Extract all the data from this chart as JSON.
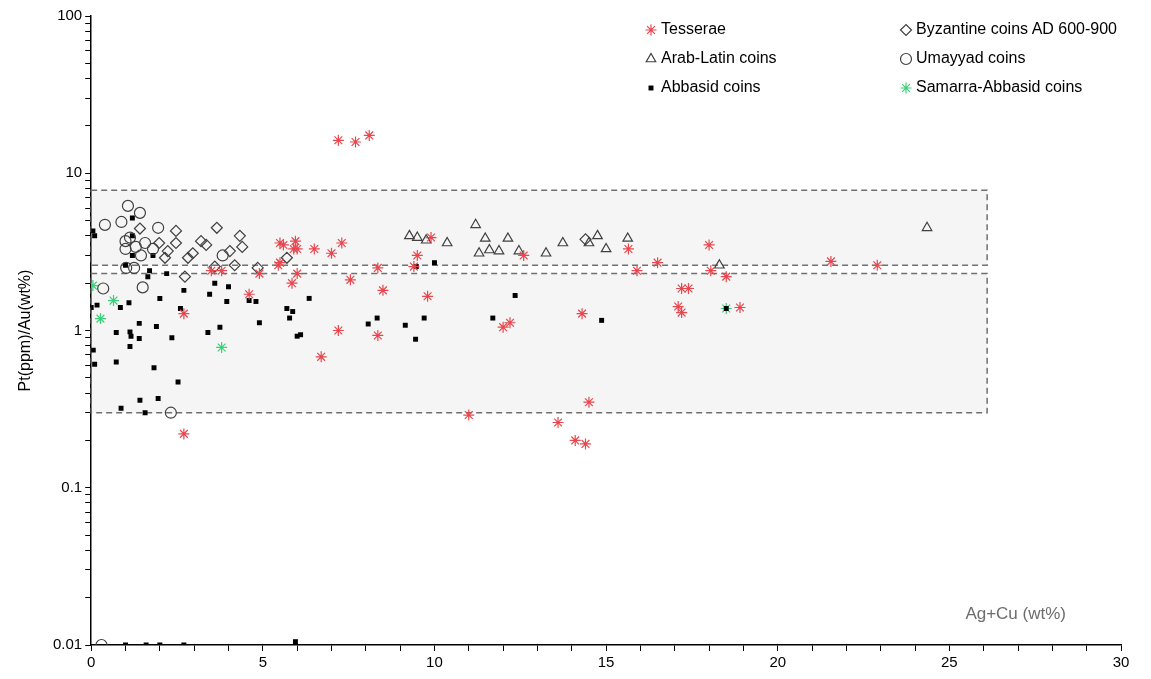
{
  "chart_data": {
    "type": "scatter",
    "xlabel": "Ag+Cu (wt%)",
    "ylabel": "Pt(ppm)/Au(wt%)",
    "log": "y",
    "grid": false,
    "legend": "top right",
    "xlim": [
      0,
      30
    ],
    "xticks": [
      0,
      {
        "value": 1,
        "label": null
      },
      {
        "value": 2,
        "label": null
      },
      {
        "value": 3,
        "label": null
      },
      {
        "value": 4,
        "label": null
      },
      5,
      {
        "value": 6,
        "label": null
      },
      {
        "value": 7,
        "label": null
      },
      {
        "value": 8,
        "label": null
      },
      {
        "value": 9,
        "label": null
      },
      10,
      {
        "value": 11,
        "label": null
      },
      {
        "value": 12,
        "label": null
      },
      {
        "value": 13,
        "label": null
      },
      {
        "value": 14,
        "label": null
      },
      15,
      {
        "value": 16,
        "label": null
      },
      {
        "value": 17,
        "label": null
      },
      {
        "value": 18,
        "label": null
      },
      {
        "value": 19,
        "label": null
      },
      20,
      {
        "value": 21,
        "label": null
      },
      {
        "value": 22,
        "label": null
      },
      {
        "value": 23,
        "label": null
      },
      {
        "value": 24,
        "label": null
      },
      25,
      {
        "value": 26,
        "label": null
      },
      {
        "value": 27,
        "label": null
      },
      {
        "value": 28,
        "label": null
      },
      {
        "value": 29,
        "label": null
      },
      30
    ],
    "ylim": [
      0.01,
      100
    ],
    "yticks": [
      0.01,
      {
        "value": 0.02,
        "label": null
      },
      {
        "value": 0.03,
        "label": null
      },
      {
        "value": 0.04,
        "label": null
      },
      {
        "value": 0.05,
        "label": null
      },
      {
        "value": 0.06,
        "label": null
      },
      {
        "value": 0.07,
        "label": null
      },
      {
        "value": 0.08,
        "label": null
      },
      {
        "value": 0.09,
        "label": null
      },
      0.1,
      {
        "value": 0.2,
        "label": null
      },
      {
        "value": 0.3,
        "label": null
      },
      {
        "value": 0.4,
        "label": null
      },
      {
        "value": 0.5,
        "label": null
      },
      {
        "value": 0.6,
        "label": null
      },
      {
        "value": 0.7,
        "label": null
      },
      {
        "value": 0.8,
        "label": null
      },
      {
        "value": 0.9,
        "label": null
      },
      1,
      {
        "value": 2,
        "label": null
      },
      {
        "value": 3,
        "label": null
      },
      {
        "value": 4,
        "label": null
      },
      {
        "value": 5,
        "label": null
      },
      {
        "value": 6,
        "label": null
      },
      {
        "value": 7,
        "label": null
      },
      {
        "value": 8,
        "label": null
      },
      {
        "value": 9,
        "label": null
      },
      10,
      {
        "value": 20,
        "label": null
      },
      {
        "value": 30,
        "label": null
      },
      {
        "value": 40,
        "label": null
      },
      {
        "value": 50,
        "label": null
      },
      {
        "value": 60,
        "label": null
      },
      {
        "value": 70,
        "label": null
      },
      {
        "value": 80,
        "label": null
      },
      {
        "value": 90,
        "label": null
      },
      100
    ],
    "bands": [
      {
        "axis": "y",
        "from": 2.6,
        "to": 7.8,
        "color": "#707070"
      },
      {
        "axis": "y",
        "from": 0.3,
        "to": 2.3,
        "color": "#707070"
      }
    ],
    "series": [
      {
        "name": "Tesserae",
        "color": "#e8474f",
        "marker": "cross",
        "x": [
          3.5,
          3.8,
          4.9,
          4.6,
          2.7,
          2.7,
          5.5,
          5.5,
          7.2,
          7.7,
          8.1,
          5.6,
          5.95,
          5.9,
          6.0,
          6.5,
          7.0,
          7.3,
          5.45,
          6.0,
          5.85,
          7.55,
          8.35,
          8.5,
          7.2,
          6.7,
          8.35,
          9.9,
          9.5,
          9.4,
          9.8,
          12.6,
          12.0,
          12.2,
          14.3,
          11.0,
          14.5,
          13.6,
          14.1,
          14.4,
          15.65,
          15.9,
          16.5,
          18.0,
          18.05,
          18.5,
          17.2,
          17.4,
          17.1,
          17.2,
          18.9,
          21.55,
          22.9
        ],
        "values": [
          2.4,
          2.4,
          2.3,
          1.7,
          1.28,
          0.22,
          3.6,
          2.7,
          16.2,
          15.8,
          17.4,
          3.5,
          3.7,
          3.3,
          3.3,
          3.3,
          3.1,
          3.6,
          2.6,
          2.3,
          2.0,
          2.1,
          2.5,
          1.8,
          1.0,
          0.68,
          0.93,
          3.9,
          3.0,
          2.55,
          1.65,
          3.0,
          1.05,
          1.12,
          1.28,
          0.29,
          0.35,
          0.26,
          0.2,
          0.19,
          3.3,
          2.4,
          2.7,
          3.5,
          2.4,
          2.2,
          1.85,
          1.85,
          1.42,
          1.3,
          1.4,
          2.75,
          2.6
        ]
      },
      {
        "name": "Byzantine coins AD 600-900",
        "color": "#404040",
        "marker": "diamond",
        "x": [
          1.42,
          2.47,
          1.98,
          2.47,
          3.2,
          3.35,
          3.66,
          4.33,
          4.4,
          4.04,
          2.23,
          2.96,
          2.82,
          2.15,
          4.18,
          2.73,
          4.85,
          3.6,
          5.7,
          14.4
        ],
        "values": [
          4.45,
          4.3,
          3.6,
          3.6,
          3.7,
          3.5,
          4.5,
          4.0,
          3.4,
          3.2,
          3.2,
          3.1,
          2.9,
          2.9,
          2.6,
          2.2,
          2.5,
          2.55,
          2.9,
          3.8
        ]
      },
      {
        "name": "Arab-Latin coins",
        "color": "#404040",
        "marker": "triangle",
        "x": [
          9.27,
          9.5,
          9.76,
          10.37,
          11.2,
          11.48,
          11.3,
          11.6,
          11.88,
          12.14,
          12.46,
          13.25,
          13.74,
          14.5,
          14.75,
          15.0,
          15.63,
          18.3,
          24.35
        ],
        "values": [
          4.0,
          3.9,
          3.75,
          3.6,
          4.7,
          3.85,
          3.1,
          3.25,
          3.2,
          3.85,
          3.2,
          3.1,
          3.6,
          3.6,
          4.0,
          3.3,
          3.85,
          2.6,
          4.5
        ]
      },
      {
        "name": "Umayyad coins",
        "color": "#404040",
        "marker": "circle",
        "x": [
          0.4,
          1.07,
          1.42,
          0.88,
          1.95,
          1.0,
          1.13,
          1.0,
          1.3,
          1.57,
          1.45,
          1.8,
          1.02,
          1.25,
          3.83,
          0.35,
          1.5,
          2.32,
          0.3
        ],
        "values": [
          4.7,
          6.2,
          5.6,
          4.9,
          4.5,
          3.7,
          3.9,
          3.3,
          3.4,
          3.6,
          3.0,
          3.3,
          2.5,
          2.5,
          3.0,
          1.85,
          1.88,
          0.3,
          0.01
        ]
      },
      {
        "name": "Abbasid coins",
        "color": "#000000",
        "marker": "square",
        "x": [
          0.05,
          0.1,
          1.2,
          1.2,
          1.2,
          1.8,
          1.0,
          1.7,
          2.2,
          1.65,
          2.7,
          2.0,
          3.45,
          3.6,
          4.0,
          3.95,
          4.6,
          4.8,
          2.6,
          0.0,
          0.17,
          0.85,
          1.1,
          4.9,
          1.4,
          1.9,
          0.73,
          1.13,
          1.16,
          1.4,
          1.13,
          2.35,
          3.4,
          3.75,
          0.06,
          0.1,
          0.73,
          1.83,
          2.53,
          1.42,
          1.95,
          0.87,
          1.57,
          5.7,
          5.87,
          5.78,
          6.35,
          6.1,
          6.0,
          8.07,
          8.33,
          9.15,
          9.7,
          9.45,
          9.47,
          10.0,
          12.35,
          11.7,
          14.87,
          18.5,
          1.0,
          1.6,
          2.0,
          2.7,
          5.95
        ],
        "values": [
          4.3,
          4.0,
          5.2,
          4.0,
          3.0,
          3.0,
          2.6,
          2.4,
          2.3,
          2.2,
          1.8,
          1.6,
          1.7,
          2.0,
          1.9,
          1.53,
          1.55,
          1.53,
          1.38,
          1.4,
          1.45,
          1.4,
          1.5,
          1.12,
          1.11,
          1.06,
          0.97,
          0.98,
          0.92,
          0.89,
          0.79,
          0.9,
          0.97,
          1.05,
          0.75,
          0.61,
          0.63,
          0.58,
          0.47,
          0.36,
          0.37,
          0.32,
          0.3,
          1.38,
          1.32,
          1.2,
          1.6,
          0.94,
          0.92,
          1.1,
          1.2,
          1.08,
          1.2,
          0.88,
          2.55,
          2.7,
          1.67,
          1.2,
          1.16,
          1.38,
          0.01,
          0.01,
          0.01,
          0.01,
          0.0105
        ]
      },
      {
        "name": "Samarra-Abbasid coins",
        "color": "#3ecf7a",
        "marker": "cross",
        "x": [
          0.05,
          0.65,
          0.27,
          3.8,
          18.5
        ],
        "values": [
          1.93,
          1.55,
          1.19,
          0.78,
          1.38
        ]
      }
    ]
  }
}
